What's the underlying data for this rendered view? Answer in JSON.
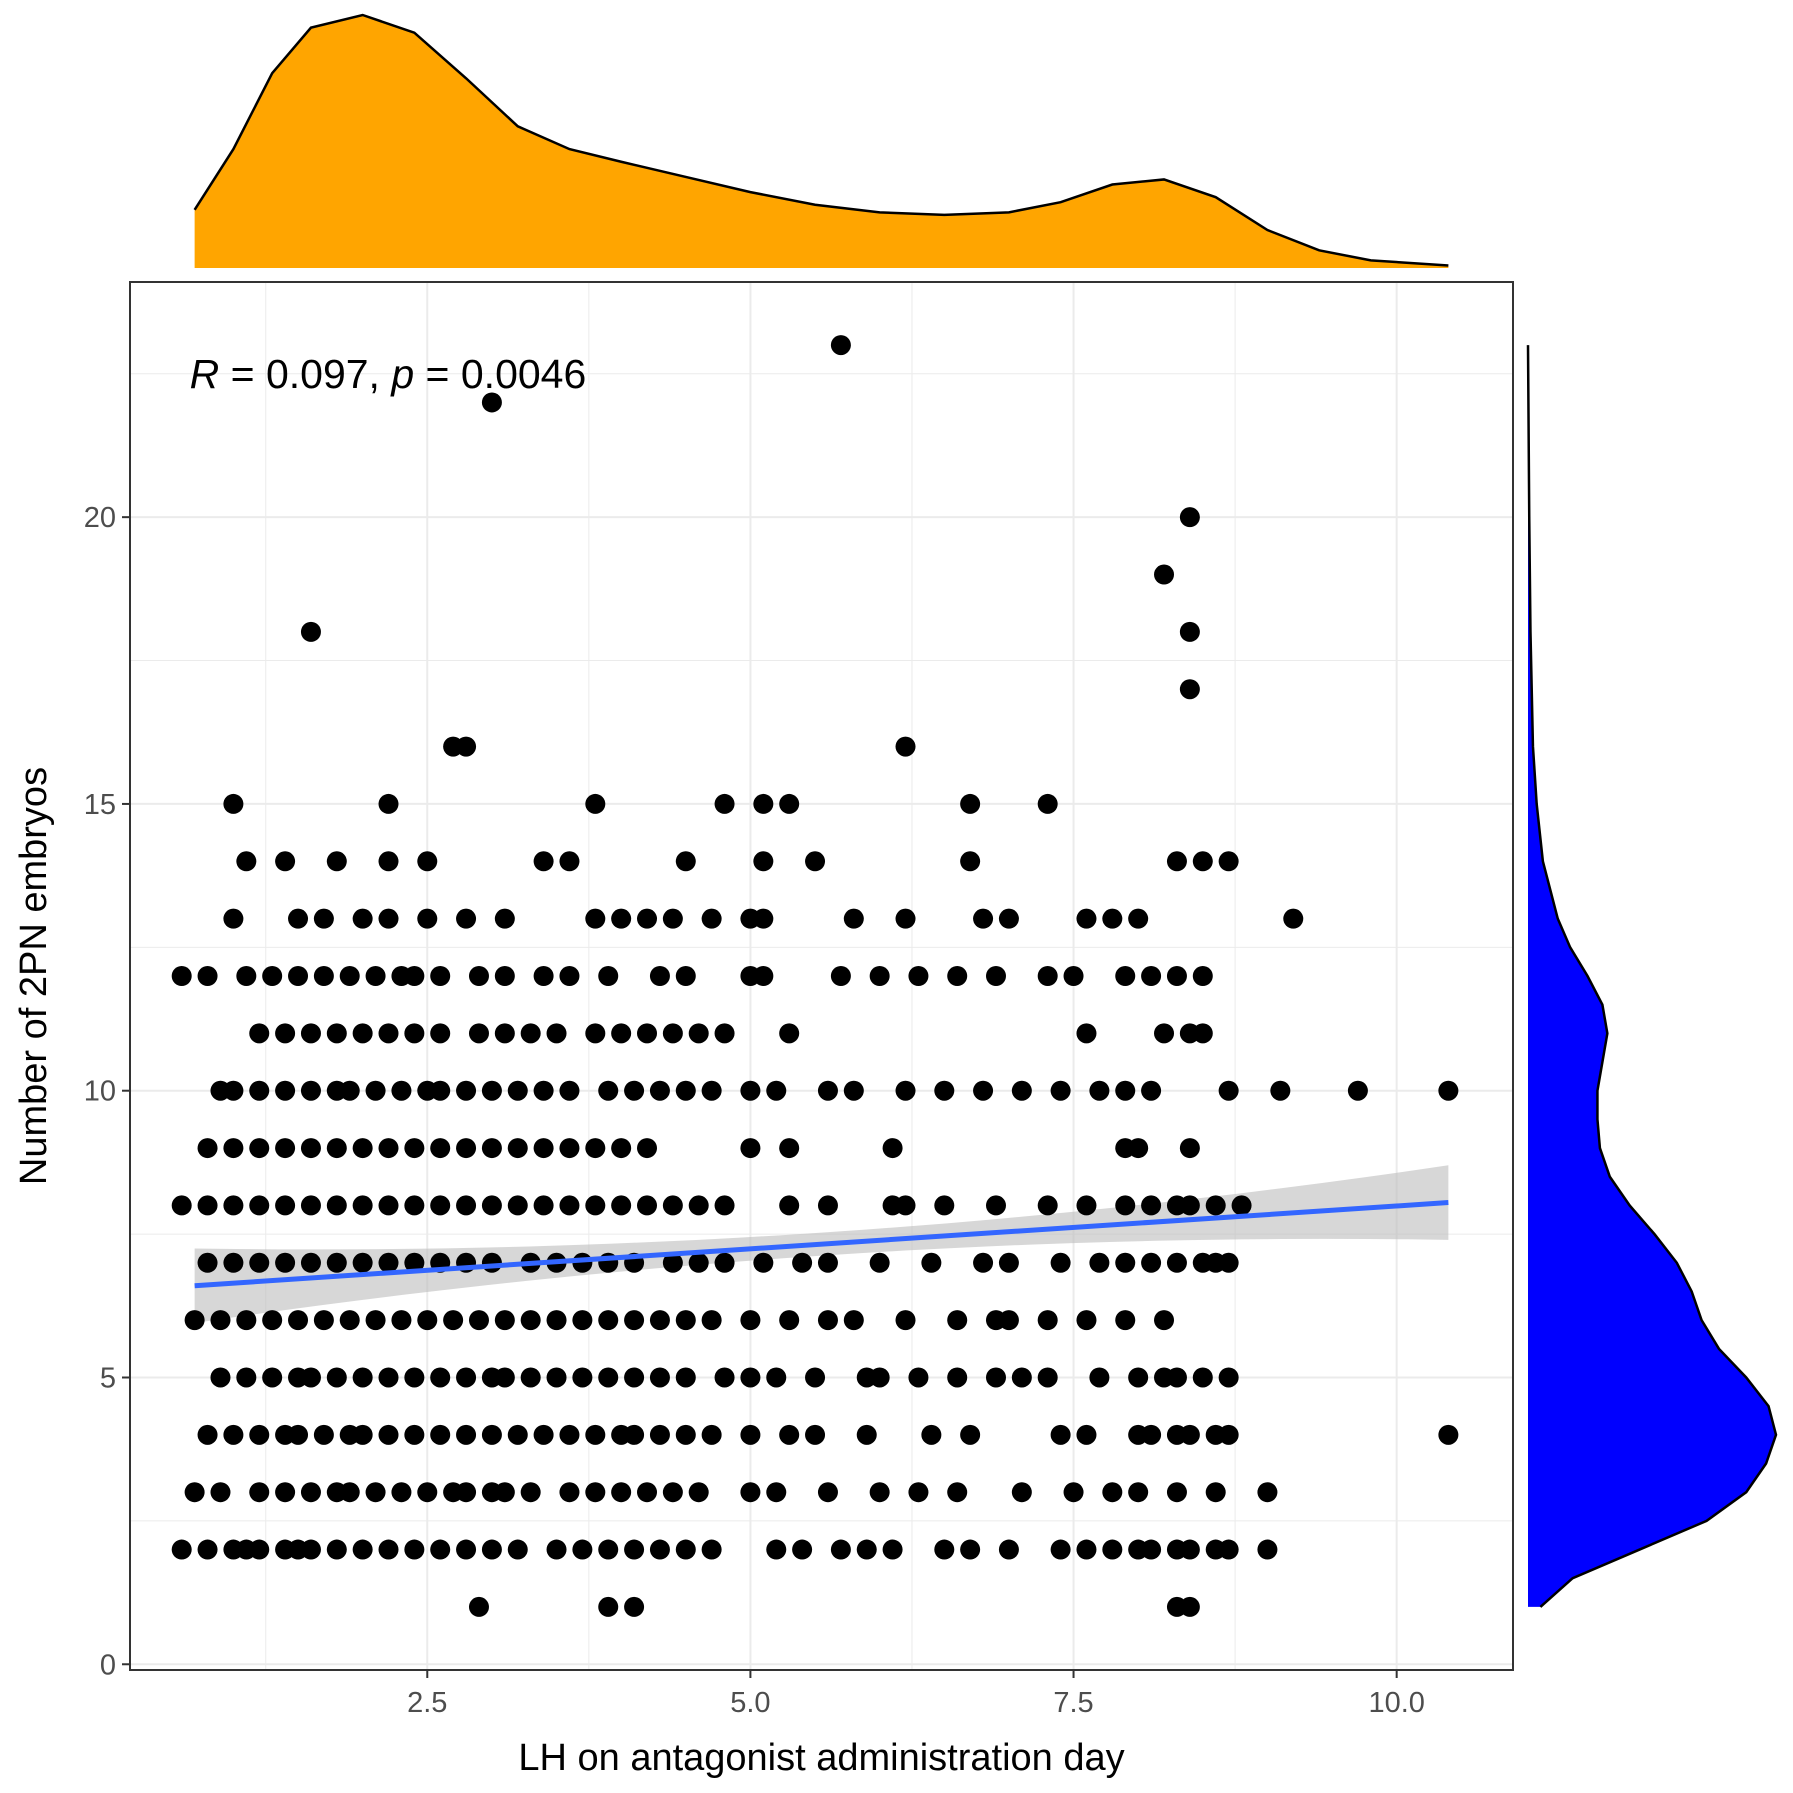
{
  "colors": {
    "points": "#000000",
    "fit_line": "#3366ff",
    "ci_band": "#bdbdbd",
    "top_density": "#ffa500",
    "right_density": "#0000ff",
    "grid": "#ebebeb",
    "panel_border": "#333333",
    "tick_text": "#4d4d4d"
  },
  "chart_data": {
    "type": "scatter",
    "title": "",
    "xlabel": "LH on antagonist administration day",
    "ylabel": "Number of 2PN embryos",
    "xlim": [
      0.2,
      10.9
    ],
    "ylim": [
      -0.1,
      24.1
    ],
    "x_ticks": [
      2.5,
      5.0,
      7.5,
      10.0
    ],
    "x_tick_labels": [
      "2.5",
      "5.0",
      "7.5",
      "10.0"
    ],
    "y_ticks": [
      0,
      5,
      10,
      15,
      20
    ],
    "y_tick_labels": [
      "0",
      "5",
      "10",
      "15",
      "20"
    ],
    "grid": true,
    "annotation": {
      "r_symbol": "R",
      "r_text": " = 0.097, ",
      "p_symbol": "p",
      "p_text": " = 0.0046",
      "x": 0.7,
      "y": 22.5
    },
    "regression": {
      "x0": 0.7,
      "x1": 10.4,
      "y0": 6.6,
      "y1": 8.05,
      "ci_half_width_ends": 0.65,
      "ci_half_width_center": 0.2
    },
    "top_density": {
      "x": [
        0.7,
        1.0,
        1.3,
        1.6,
        2.0,
        2.4,
        2.8,
        3.2,
        3.6,
        4.0,
        4.5,
        5.0,
        5.5,
        6.0,
        6.5,
        7.0,
        7.4,
        7.8,
        8.2,
        8.6,
        9.0,
        9.4,
        9.8,
        10.4
      ],
      "density": [
        0.23,
        0.47,
        0.77,
        0.95,
        1.0,
        0.93,
        0.75,
        0.56,
        0.47,
        0.42,
        0.36,
        0.3,
        0.25,
        0.22,
        0.21,
        0.22,
        0.26,
        0.33,
        0.35,
        0.28,
        0.15,
        0.07,
        0.03,
        0.01
      ]
    },
    "right_density": {
      "y": [
        1,
        1.5,
        2,
        2.5,
        3,
        3.5,
        4,
        4.5,
        5,
        5.5,
        6,
        6.5,
        7,
        7.5,
        8,
        8.5,
        9,
        9.5,
        10,
        10.5,
        11,
        11.5,
        12,
        12.5,
        13,
        14,
        15,
        16,
        18,
        20,
        23
      ],
      "density": [
        0.05,
        0.18,
        0.45,
        0.72,
        0.88,
        0.96,
        1.0,
        0.97,
        0.88,
        0.77,
        0.7,
        0.66,
        0.6,
        0.51,
        0.41,
        0.33,
        0.29,
        0.28,
        0.28,
        0.3,
        0.32,
        0.3,
        0.24,
        0.17,
        0.12,
        0.06,
        0.035,
        0.02,
        0.01,
        0.005,
        0.0
      ]
    },
    "points": {
      "x": [
        0.6,
        0.8,
        1.0,
        1.1,
        1.2,
        1.4,
        1.5,
        1.6,
        1.8,
        2.0,
        2.2,
        2.4,
        2.6,
        2.8,
        3.0,
        3.2,
        3.5,
        3.7,
        3.9,
        4.1,
        4.3,
        4.5,
        4.7,
        5.2,
        5.4,
        5.7,
        5.9,
        6.1,
        6.5,
        6.7,
        7.0,
        7.4,
        7.6,
        7.8,
        8.0,
        8.1,
        8.3,
        8.4,
        8.6,
        8.7,
        9.0,
        0.7,
        0.9,
        1.2,
        1.4,
        1.6,
        1.8,
        1.9,
        2.1,
        2.3,
        2.5,
        2.7,
        2.8,
        3.0,
        3.1,
        3.3,
        3.6,
        3.8,
        4.0,
        4.2,
        4.4,
        4.6,
        5.0,
        5.2,
        5.6,
        6.0,
        6.3,
        6.6,
        7.1,
        7.5,
        7.8,
        8.0,
        8.3,
        8.6,
        9.0,
        0.8,
        1.0,
        1.2,
        1.4,
        1.5,
        1.7,
        1.9,
        2.0,
        2.2,
        2.4,
        2.6,
        2.8,
        3.0,
        3.2,
        3.4,
        3.6,
        3.8,
        4.0,
        4.1,
        4.3,
        4.5,
        4.7,
        5.0,
        5.3,
        5.5,
        5.9,
        6.4,
        6.7,
        7.4,
        7.6,
        8.0,
        8.1,
        8.3,
        8.4,
        8.6,
        8.7,
        0.9,
        1.1,
        1.3,
        1.5,
        1.6,
        1.8,
        2.0,
        2.2,
        2.4,
        2.6,
        2.8,
        3.0,
        3.1,
        3.3,
        3.5,
        3.7,
        3.9,
        4.1,
        4.3,
        4.5,
        4.8,
        5.0,
        5.2,
        5.5,
        5.9,
        6.0,
        6.3,
        6.6,
        6.9,
        7.1,
        7.3,
        7.7,
        8.0,
        8.2,
        8.3,
        8.5,
        8.7,
        0.7,
        0.9,
        1.1,
        1.3,
        1.5,
        1.7,
        1.9,
        2.1,
        2.3,
        2.5,
        2.7,
        2.9,
        3.1,
        3.3,
        3.5,
        3.7,
        3.9,
        4.1,
        4.3,
        4.5,
        4.7,
        5.0,
        5.3,
        5.6,
        5.8,
        6.2,
        6.6,
        6.9,
        7.0,
        7.3,
        7.6,
        7.9,
        8.2,
        0.8,
        1.0,
        1.2,
        1.4,
        1.6,
        1.8,
        2.0,
        2.2,
        2.4,
        2.6,
        2.8,
        3.0,
        3.3,
        3.5,
        3.7,
        3.9,
        4.1,
        4.4,
        4.6,
        4.8,
        5.1,
        5.4,
        5.6,
        6.0,
        6.4,
        6.8,
        7.0,
        7.4,
        7.7,
        7.9,
        8.1,
        8.3,
        8.5,
        8.6,
        8.7,
        0.6,
        0.8,
        1.0,
        1.2,
        1.4,
        1.6,
        1.8,
        2.0,
        2.2,
        2.4,
        2.6,
        2.8,
        3.0,
        3.2,
        3.4,
        3.6,
        3.8,
        4.0,
        4.2,
        4.4,
        4.6,
        4.8,
        5.3,
        5.6,
        6.1,
        6.2,
        6.5,
        6.9,
        7.3,
        7.6,
        7.9,
        8.1,
        8.3,
        8.4,
        8.6,
        8.8,
        0.8,
        1.0,
        1.2,
        1.4,
        1.6,
        1.8,
        2.0,
        2.2,
        2.4,
        2.6,
        2.8,
        3.0,
        3.2,
        3.4,
        3.6,
        3.8,
        4.0,
        4.2,
        5.0,
        5.3,
        6.1,
        7.9,
        8.0,
        8.4,
        0.9,
        1.0,
        1.2,
        1.4,
        1.6,
        1.8,
        1.9,
        2.1,
        2.3,
        2.5,
        2.6,
        2.8,
        3.0,
        3.2,
        3.4,
        3.6,
        3.9,
        4.1,
        4.3,
        4.5,
        4.7,
        5.0,
        5.2,
        5.6,
        5.8,
        6.2,
        6.5,
        6.8,
        7.1,
        7.4,
        7.7,
        7.9,
        8.1,
        8.7,
        9.1,
        9.7,
        10.4,
        1.2,
        1.4,
        1.6,
        1.8,
        2.0,
        2.2,
        2.4,
        2.6,
        2.9,
        3.1,
        3.3,
        3.5,
        3.8,
        4.0,
        4.2,
        4.4,
        4.6,
        4.8,
        5.3,
        7.6,
        8.2,
        8.4,
        8.5,
        0.6,
        0.8,
        1.1,
        1.3,
        1.5,
        1.7,
        1.9,
        2.1,
        2.3,
        2.4,
        2.6,
        2.9,
        3.1,
        3.4,
        3.6,
        3.9,
        4.3,
        4.5,
        5.0,
        5.1,
        5.7,
        6.0,
        6.3,
        6.6,
        6.9,
        7.3,
        7.5,
        7.9,
        8.1,
        8.3,
        8.5,
        1.0,
        1.5,
        1.7,
        2.0,
        2.2,
        2.5,
        2.8,
        3.1,
        3.8,
        4.0,
        4.2,
        4.4,
        4.7,
        5.0,
        5.1,
        5.8,
        6.2,
        6.8,
        7.0,
        7.6,
        7.8,
        8.0,
        9.2,
        1.1,
        1.4,
        1.8,
        2.2,
        2.5,
        3.4,
        3.6,
        4.5,
        5.1,
        5.5,
        6.7,
        8.3,
        8.5,
        8.7,
        1.0,
        2.2,
        3.8,
        4.8,
        5.1,
        5.3,
        6.7,
        7.3,
        2.7,
        2.8,
        6.2,
        1.6,
        8.4,
        8.2,
        8.4,
        8.4,
        8.3,
        3.0,
        5.7
      ],
      "y": [
        2,
        2,
        2,
        2,
        2,
        2,
        2,
        2,
        2,
        2,
        2,
        2,
        2,
        2,
        2,
        2,
        2,
        2,
        2,
        2,
        2,
        2,
        2,
        2,
        2,
        2,
        2,
        2,
        2,
        2,
        2,
        2,
        2,
        2,
        2,
        2,
        2,
        2,
        2,
        2,
        2,
        3,
        3,
        3,
        3,
        3,
        3,
        3,
        3,
        3,
        3,
        3,
        3,
        3,
        3,
        3,
        3,
        3,
        3,
        3,
        3,
        3,
        3,
        3,
        3,
        3,
        3,
        3,
        3,
        3,
        3,
        3,
        3,
        3,
        3,
        4,
        4,
        4,
        4,
        4,
        4,
        4,
        4,
        4,
        4,
        4,
        4,
        4,
        4,
        4,
        4,
        4,
        4,
        4,
        4,
        4,
        4,
        4,
        4,
        4,
        4,
        4,
        4,
        4,
        4,
        4,
        4,
        4,
        4,
        4,
        4,
        5,
        5,
        5,
        5,
        5,
        5,
        5,
        5,
        5,
        5,
        5,
        5,
        5,
        5,
        5,
        5,
        5,
        5,
        5,
        5,
        5,
        5,
        5,
        5,
        5,
        5,
        5,
        5,
        5,
        5,
        5,
        5,
        5,
        5,
        5,
        5,
        5,
        6,
        6,
        6,
        6,
        6,
        6,
        6,
        6,
        6,
        6,
        6,
        6,
        6,
        6,
        6,
        6,
        6,
        6,
        6,
        6,
        6,
        6,
        6,
        6,
        6,
        6,
        6,
        6,
        6,
        6,
        6,
        6,
        6,
        7,
        7,
        7,
        7,
        7,
        7,
        7,
        7,
        7,
        7,
        7,
        7,
        7,
        7,
        7,
        7,
        7,
        7,
        7,
        7,
        7,
        7,
        7,
        7,
        7,
        7,
        7,
        7,
        7,
        7,
        7,
        7,
        7,
        7,
        7,
        8,
        8,
        8,
        8,
        8,
        8,
        8,
        8,
        8,
        8,
        8,
        8,
        8,
        8,
        8,
        8,
        8,
        8,
        8,
        8,
        8,
        8,
        8,
        8,
        8,
        8,
        8,
        8,
        8,
        8,
        8,
        8,
        8,
        8,
        8,
        8,
        9,
        9,
        9,
        9,
        9,
        9,
        9,
        9,
        9,
        9,
        9,
        9,
        9,
        9,
        9,
        9,
        9,
        9,
        9,
        9,
        9,
        9,
        9,
        9,
        10,
        10,
        10,
        10,
        10,
        10,
        10,
        10,
        10,
        10,
        10,
        10,
        10,
        10,
        10,
        10,
        10,
        10,
        10,
        10,
        10,
        10,
        10,
        10,
        10,
        10,
        10,
        10,
        10,
        10,
        10,
        10,
        10,
        10,
        10,
        10,
        10,
        11,
        11,
        11,
        11,
        11,
        11,
        11,
        11,
        11,
        11,
        11,
        11,
        11,
        11,
        11,
        11,
        11,
        11,
        11,
        11,
        11,
        11,
        11,
        12,
        12,
        12,
        12,
        12,
        12,
        12,
        12,
        12,
        12,
        12,
        12,
        12,
        12,
        12,
        12,
        12,
        12,
        12,
        12,
        12,
        12,
        12,
        12,
        12,
        12,
        12,
        12,
        12,
        12,
        12,
        13,
        13,
        13,
        13,
        13,
        13,
        13,
        13,
        13,
        13,
        13,
        13,
        13,
        13,
        13,
        13,
        13,
        13,
        13,
        13,
        13,
        13,
        13,
        14,
        14,
        14,
        14,
        14,
        14,
        14,
        14,
        14,
        14,
        14,
        14,
        14,
        14,
        15,
        15,
        15,
        15,
        15,
        15,
        15,
        15,
        16,
        16,
        16,
        18,
        18,
        19,
        20,
        17,
        1,
        22,
        23
      ],
      "extra_x": [
        2.9,
        3.9,
        4.1,
        8.4,
        10.4
      ],
      "extra_y": [
        1,
        1,
        1,
        1,
        4
      ]
    }
  }
}
